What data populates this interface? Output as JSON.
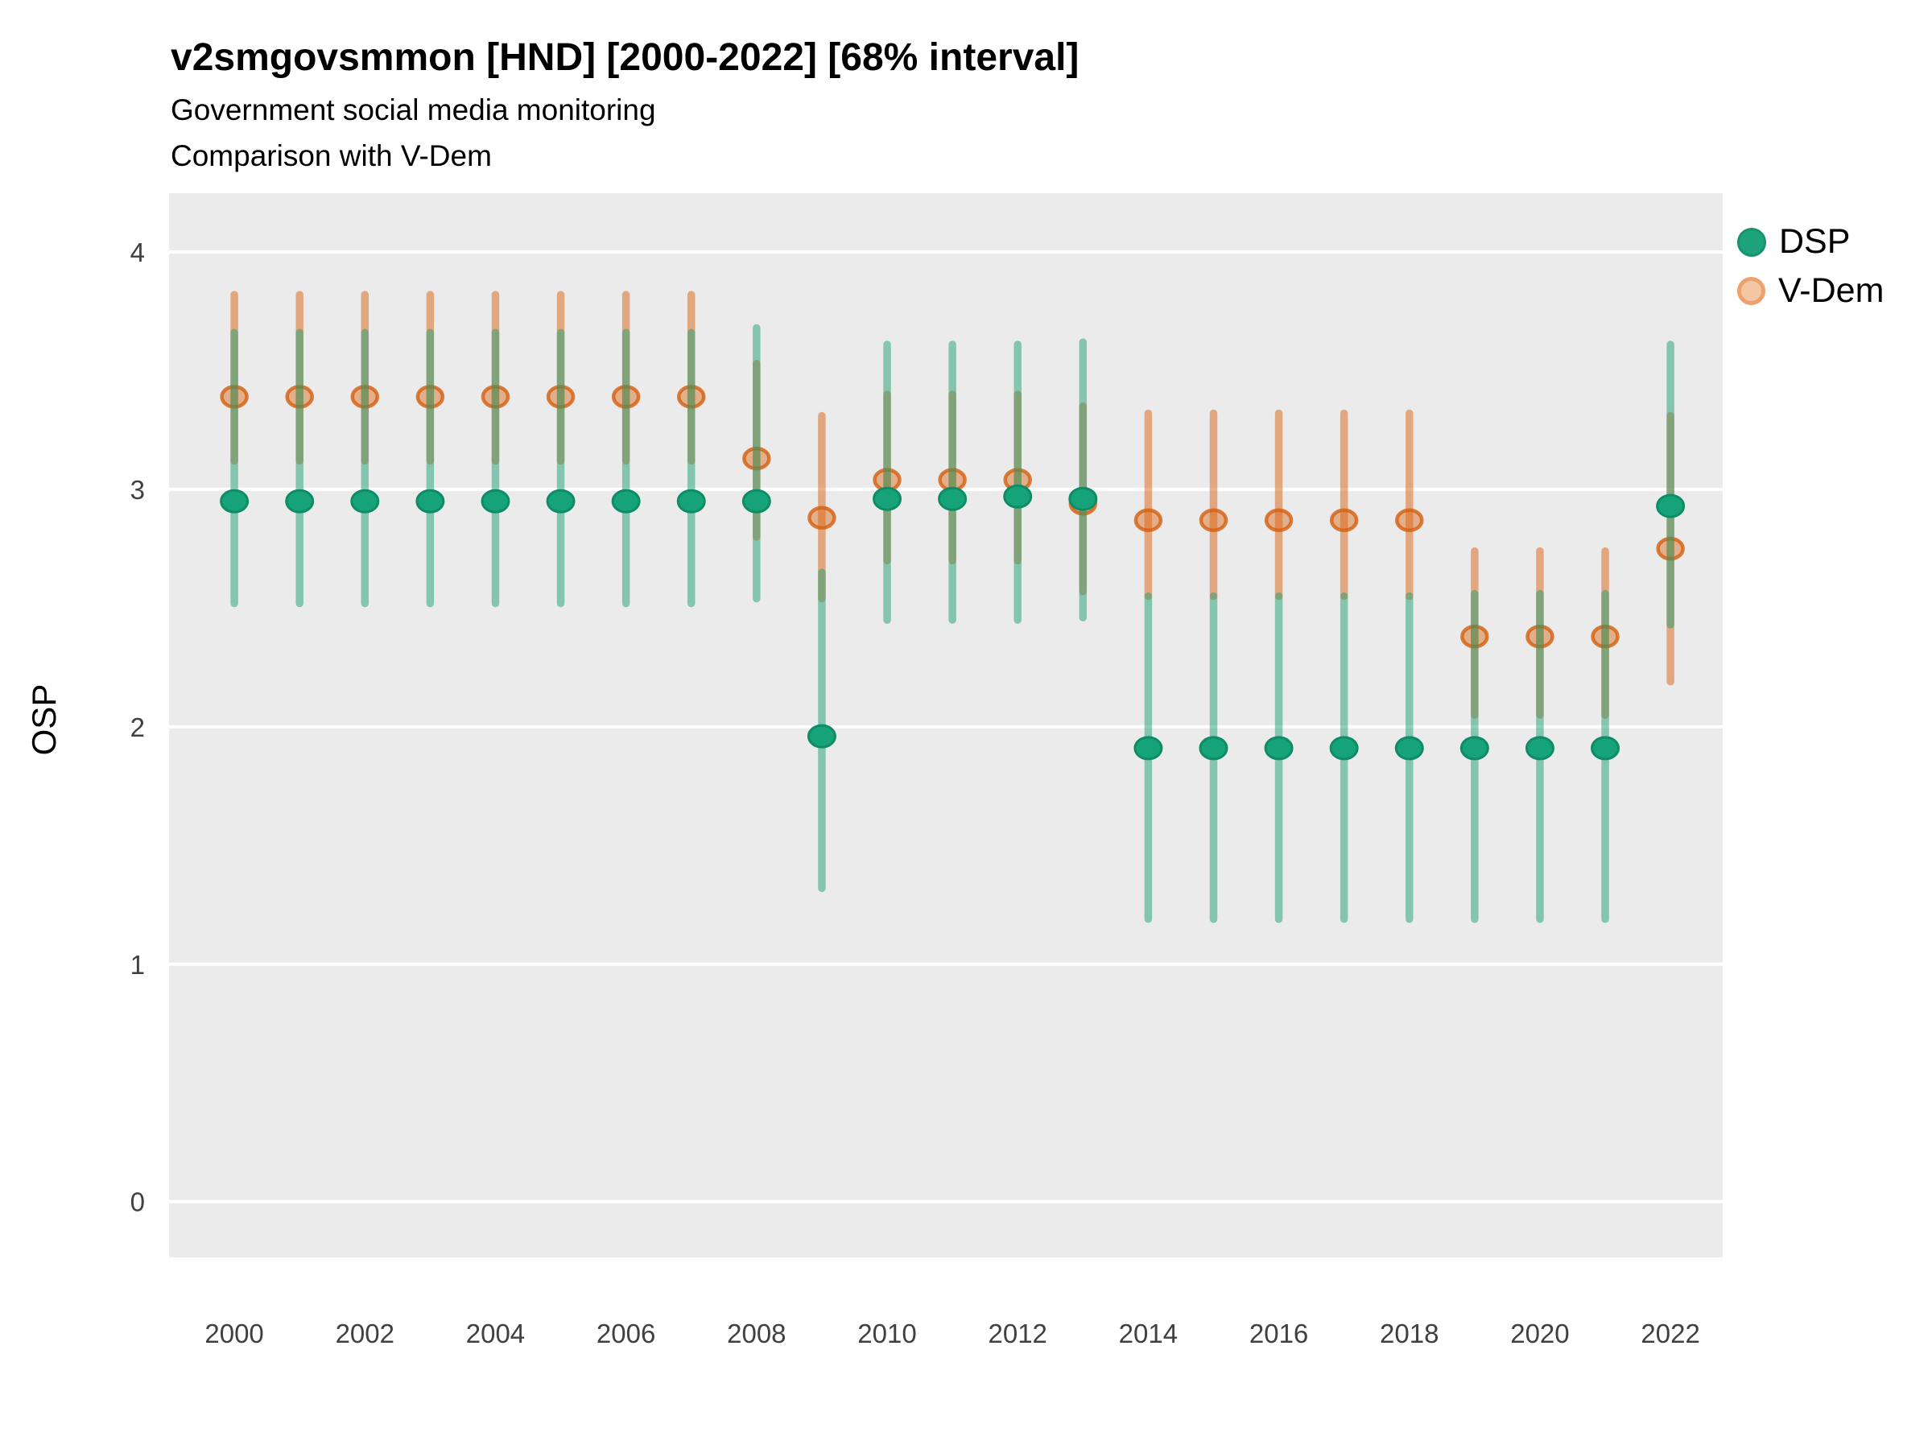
{
  "header": {
    "title": "v2smgovsmmon [HND] [2000-2022] [68% interval]",
    "subtitle1": "Government social media monitoring",
    "subtitle2": "Comparison with V-Dem"
  },
  "axes": {
    "y_label": "OSP",
    "y_ticks": [
      0,
      1,
      2,
      3,
      4
    ],
    "x_ticks": [
      2000,
      2002,
      2004,
      2006,
      2008,
      2010,
      2012,
      2014,
      2016,
      2018,
      2020,
      2022
    ]
  },
  "legend": {
    "items": [
      {
        "label": "DSP",
        "color": "#1b9e77"
      },
      {
        "label": "V-Dem",
        "color": "#d95f02"
      }
    ]
  },
  "colors": {
    "panel_bg": "#ebebeb",
    "grid": "#ffffff",
    "tick_text": "#404040",
    "dsp_point": "#16a379",
    "dsp_point_stroke": "#0f8c66",
    "dsp_bar": "rgba(30,160,115,0.5)",
    "vdem_point_fill": "rgba(217,100,20,0.45)",
    "vdem_point_stroke": "rgba(213,95,15,0.8)",
    "vdem_bar": "rgba(217,100,20,0.5)"
  },
  "chart_data": {
    "type": "scatter",
    "title": "v2smgovsmmon [HND] [2000-2022] [68% interval]",
    "subtitle": [
      "Government social media monitoring",
      "Comparison with V-Dem"
    ],
    "xlabel": "",
    "ylabel": "OSP",
    "interval": "68%",
    "grid": true,
    "legend_position": "right",
    "xlim": [
      1999.0,
      2022.8
    ],
    "ylim": [
      -0.235,
      4.2475
    ],
    "x_ticks": [
      2000,
      2002,
      2004,
      2006,
      2008,
      2010,
      2012,
      2014,
      2016,
      2018,
      2020,
      2022
    ],
    "y_ticks": [
      0,
      1,
      2,
      3,
      4
    ],
    "x": [
      2000,
      2001,
      2002,
      2003,
      2004,
      2005,
      2006,
      2007,
      2008,
      2009,
      2010,
      2011,
      2012,
      2013,
      2014,
      2015,
      2016,
      2017,
      2018,
      2019,
      2020,
      2021,
      2022
    ],
    "series": [
      {
        "name": "DSP",
        "points": [
          2.95,
          2.95,
          2.95,
          2.95,
          2.95,
          2.95,
          2.95,
          2.95,
          2.95,
          1.96,
          2.96,
          2.96,
          2.97,
          2.96,
          1.91,
          1.91,
          1.91,
          1.91,
          1.91,
          1.91,
          1.91,
          1.91,
          2.93
        ],
        "lower": [
          2.52,
          2.52,
          2.52,
          2.52,
          2.52,
          2.52,
          2.52,
          2.52,
          2.54,
          1.32,
          2.45,
          2.45,
          2.45,
          2.46,
          1.19,
          1.19,
          1.19,
          1.19,
          1.19,
          1.19,
          1.19,
          1.19,
          2.43
        ],
        "upper": [
          3.66,
          3.66,
          3.66,
          3.66,
          3.66,
          3.66,
          3.66,
          3.66,
          3.68,
          2.65,
          3.61,
          3.61,
          3.61,
          3.62,
          2.55,
          2.55,
          2.55,
          2.55,
          2.55,
          2.56,
          2.56,
          2.56,
          3.61
        ]
      },
      {
        "name": "V-Dem",
        "points": [
          3.39,
          3.39,
          3.39,
          3.39,
          3.39,
          3.39,
          3.39,
          3.39,
          3.13,
          2.88,
          3.04,
          3.04,
          3.04,
          2.94,
          2.87,
          2.87,
          2.87,
          2.87,
          2.87,
          2.38,
          2.38,
          2.38,
          2.75
        ],
        "lower": [
          3.12,
          3.12,
          3.12,
          3.12,
          3.12,
          3.12,
          3.12,
          3.12,
          2.8,
          2.54,
          2.7,
          2.7,
          2.7,
          2.57,
          2.55,
          2.55,
          2.55,
          2.55,
          2.55,
          2.05,
          2.05,
          2.05,
          2.19
        ],
        "upper": [
          3.82,
          3.82,
          3.82,
          3.82,
          3.82,
          3.82,
          3.82,
          3.82,
          3.53,
          3.31,
          3.4,
          3.4,
          3.4,
          3.35,
          3.32,
          3.32,
          3.32,
          3.32,
          3.32,
          2.74,
          2.74,
          2.74,
          3.31
        ]
      }
    ]
  }
}
